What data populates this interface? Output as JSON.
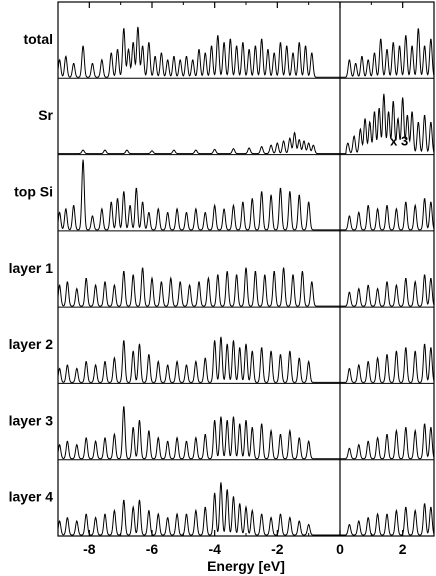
{
  "chart_data": {
    "type": "line",
    "title": "",
    "xlabel": "Energy [eV]",
    "ylabel": "",
    "xlim": [
      -9.0,
      3.0
    ],
    "xticks": [
      -8,
      -6,
      -4,
      -2,
      0,
      2
    ],
    "xtick_labels": [
      "-8",
      "-6",
      "-4",
      "-2",
      "0",
      "2"
    ],
    "fermi_level": 0,
    "band_gap": [
      -0.6,
      0.2
    ],
    "grid": false,
    "legend": "none",
    "line_color": "#000000",
    "series": [
      {
        "name": "total",
        "peaks": [
          [
            -8.95,
            0.25
          ],
          [
            -8.75,
            0.3
          ],
          [
            -8.5,
            0.2
          ],
          [
            -8.2,
            0.45
          ],
          [
            -7.9,
            0.2
          ],
          [
            -7.6,
            0.25
          ],
          [
            -7.3,
            0.35
          ],
          [
            -7.1,
            0.4
          ],
          [
            -6.9,
            0.7
          ],
          [
            -6.75,
            0.4
          ],
          [
            -6.6,
            0.5
          ],
          [
            -6.45,
            0.72
          ],
          [
            -6.3,
            0.45
          ],
          [
            -6.1,
            0.5
          ],
          [
            -5.9,
            0.3
          ],
          [
            -5.7,
            0.35
          ],
          [
            -5.5,
            0.25
          ],
          [
            -5.3,
            0.3
          ],
          [
            -5.1,
            0.25
          ],
          [
            -4.9,
            0.3
          ],
          [
            -4.7,
            0.25
          ],
          [
            -4.5,
            0.4
          ],
          [
            -4.3,
            0.35
          ],
          [
            -4.1,
            0.45
          ],
          [
            -3.9,
            0.6
          ],
          [
            -3.7,
            0.5
          ],
          [
            -3.5,
            0.55
          ],
          [
            -3.3,
            0.45
          ],
          [
            -3.1,
            0.5
          ],
          [
            -2.9,
            0.4
          ],
          [
            -2.7,
            0.45
          ],
          [
            -2.5,
            0.55
          ],
          [
            -2.3,
            0.4
          ],
          [
            -2.1,
            0.35
          ],
          [
            -1.9,
            0.5
          ],
          [
            -1.7,
            0.45
          ],
          [
            -1.5,
            0.35
          ],
          [
            -1.3,
            0.5
          ],
          [
            -1.1,
            0.45
          ],
          [
            -0.9,
            0.35
          ],
          [
            0.3,
            0.25
          ],
          [
            0.5,
            0.2
          ],
          [
            0.7,
            0.3
          ],
          [
            0.9,
            0.25
          ],
          [
            1.1,
            0.35
          ],
          [
            1.3,
            0.55
          ],
          [
            1.5,
            0.4
          ],
          [
            1.7,
            0.5
          ],
          [
            1.9,
            0.45
          ],
          [
            2.1,
            0.6
          ],
          [
            2.3,
            0.45
          ],
          [
            2.5,
            0.7
          ],
          [
            2.7,
            0.45
          ],
          [
            2.9,
            0.55
          ]
        ],
        "annotation": ""
      },
      {
        "name": "Sr",
        "peaks": [
          [
            -8.2,
            0.05
          ],
          [
            -7.5,
            0.05
          ],
          [
            -6.8,
            0.05
          ],
          [
            -6.0,
            0.04
          ],
          [
            -5.3,
            0.05
          ],
          [
            -4.6,
            0.05
          ],
          [
            -4.0,
            0.06
          ],
          [
            -3.4,
            0.07
          ],
          [
            -2.9,
            0.08
          ],
          [
            -2.5,
            0.1
          ],
          [
            -2.2,
            0.12
          ],
          [
            -2.0,
            0.15
          ],
          [
            -1.8,
            0.18
          ],
          [
            -1.6,
            0.22
          ],
          [
            -1.45,
            0.3
          ],
          [
            -1.3,
            0.2
          ],
          [
            -1.15,
            0.18
          ],
          [
            -1.0,
            0.15
          ],
          [
            -0.85,
            0.12
          ],
          [
            0.25,
            0.15
          ],
          [
            0.45,
            0.25
          ],
          [
            0.65,
            0.35
          ],
          [
            0.8,
            0.5
          ],
          [
            0.95,
            0.45
          ],
          [
            1.1,
            0.6
          ],
          [
            1.25,
            0.65
          ],
          [
            1.4,
            0.85
          ],
          [
            1.55,
            0.6
          ],
          [
            1.7,
            0.75
          ],
          [
            1.85,
            0.5
          ],
          [
            2.0,
            0.8
          ],
          [
            2.15,
            0.55
          ],
          [
            2.3,
            0.6
          ],
          [
            2.5,
            0.45
          ],
          [
            2.7,
            0.55
          ],
          [
            2.9,
            0.45
          ]
        ],
        "annotation": "x 3"
      },
      {
        "name": "top Si",
        "peaks": [
          [
            -8.95,
            0.25
          ],
          [
            -8.75,
            0.3
          ],
          [
            -8.5,
            0.35
          ],
          [
            -8.2,
            1.0
          ],
          [
            -7.9,
            0.2
          ],
          [
            -7.6,
            0.3
          ],
          [
            -7.3,
            0.4
          ],
          [
            -7.1,
            0.45
          ],
          [
            -6.9,
            0.55
          ],
          [
            -6.7,
            0.35
          ],
          [
            -6.5,
            0.6
          ],
          [
            -6.3,
            0.4
          ],
          [
            -6.1,
            0.25
          ],
          [
            -5.8,
            0.3
          ],
          [
            -5.5,
            0.25
          ],
          [
            -5.2,
            0.3
          ],
          [
            -4.9,
            0.25
          ],
          [
            -4.6,
            0.3
          ],
          [
            -4.3,
            0.25
          ],
          [
            -4.0,
            0.35
          ],
          [
            -3.7,
            0.3
          ],
          [
            -3.4,
            0.35
          ],
          [
            -3.1,
            0.4
          ],
          [
            -2.8,
            0.45
          ],
          [
            -2.5,
            0.55
          ],
          [
            -2.2,
            0.5
          ],
          [
            -1.9,
            0.6
          ],
          [
            -1.6,
            0.55
          ],
          [
            -1.3,
            0.5
          ],
          [
            -1.0,
            0.4
          ],
          [
            0.3,
            0.2
          ],
          [
            0.6,
            0.25
          ],
          [
            0.9,
            0.35
          ],
          [
            1.2,
            0.3
          ],
          [
            1.5,
            0.35
          ],
          [
            1.8,
            0.3
          ],
          [
            2.1,
            0.4
          ],
          [
            2.4,
            0.35
          ],
          [
            2.7,
            0.45
          ],
          [
            2.9,
            0.4
          ]
        ],
        "annotation": ""
      },
      {
        "name": "layer 1",
        "peaks": [
          [
            -8.95,
            0.3
          ],
          [
            -8.7,
            0.35
          ],
          [
            -8.4,
            0.25
          ],
          [
            -8.1,
            0.4
          ],
          [
            -7.8,
            0.3
          ],
          [
            -7.5,
            0.35
          ],
          [
            -7.2,
            0.3
          ],
          [
            -6.9,
            0.5
          ],
          [
            -6.6,
            0.45
          ],
          [
            -6.3,
            0.55
          ],
          [
            -6.0,
            0.4
          ],
          [
            -5.7,
            0.35
          ],
          [
            -5.4,
            0.4
          ],
          [
            -5.1,
            0.35
          ],
          [
            -4.8,
            0.3
          ],
          [
            -4.5,
            0.35
          ],
          [
            -4.2,
            0.4
          ],
          [
            -3.9,
            0.45
          ],
          [
            -3.6,
            0.5
          ],
          [
            -3.3,
            0.45
          ],
          [
            -3.0,
            0.55
          ],
          [
            -2.7,
            0.5
          ],
          [
            -2.4,
            0.45
          ],
          [
            -2.1,
            0.5
          ],
          [
            -1.8,
            0.55
          ],
          [
            -1.5,
            0.45
          ],
          [
            -1.2,
            0.5
          ],
          [
            -0.9,
            0.35
          ],
          [
            0.3,
            0.2
          ],
          [
            0.6,
            0.25
          ],
          [
            0.9,
            0.3
          ],
          [
            1.2,
            0.25
          ],
          [
            1.5,
            0.35
          ],
          [
            1.8,
            0.3
          ],
          [
            2.1,
            0.4
          ],
          [
            2.4,
            0.35
          ],
          [
            2.7,
            0.45
          ],
          [
            2.9,
            0.4
          ]
        ],
        "annotation": ""
      },
      {
        "name": "layer 2",
        "peaks": [
          [
            -8.95,
            0.2
          ],
          [
            -8.7,
            0.25
          ],
          [
            -8.4,
            0.2
          ],
          [
            -8.1,
            0.3
          ],
          [
            -7.8,
            0.25
          ],
          [
            -7.5,
            0.3
          ],
          [
            -7.2,
            0.35
          ],
          [
            -6.9,
            0.6
          ],
          [
            -6.6,
            0.45
          ],
          [
            -6.4,
            0.55
          ],
          [
            -6.1,
            0.4
          ],
          [
            -5.8,
            0.3
          ],
          [
            -5.5,
            0.25
          ],
          [
            -5.2,
            0.3
          ],
          [
            -4.9,
            0.25
          ],
          [
            -4.6,
            0.3
          ],
          [
            -4.3,
            0.35
          ],
          [
            -4.0,
            0.6
          ],
          [
            -3.8,
            0.65
          ],
          [
            -3.6,
            0.55
          ],
          [
            -3.4,
            0.6
          ],
          [
            -3.2,
            0.5
          ],
          [
            -3.0,
            0.55
          ],
          [
            -2.8,
            0.45
          ],
          [
            -2.5,
            0.5
          ],
          [
            -2.2,
            0.45
          ],
          [
            -1.9,
            0.4
          ],
          [
            -1.6,
            0.45
          ],
          [
            -1.3,
            0.35
          ],
          [
            -1.0,
            0.3
          ],
          [
            0.3,
            0.2
          ],
          [
            0.6,
            0.25
          ],
          [
            0.9,
            0.3
          ],
          [
            1.2,
            0.35
          ],
          [
            1.5,
            0.4
          ],
          [
            1.8,
            0.45
          ],
          [
            2.1,
            0.5
          ],
          [
            2.4,
            0.45
          ],
          [
            2.7,
            0.55
          ],
          [
            2.9,
            0.5
          ]
        ],
        "annotation": ""
      },
      {
        "name": "layer 3",
        "peaks": [
          [
            -8.95,
            0.2
          ],
          [
            -8.7,
            0.25
          ],
          [
            -8.4,
            0.2
          ],
          [
            -8.1,
            0.3
          ],
          [
            -7.8,
            0.25
          ],
          [
            -7.5,
            0.3
          ],
          [
            -7.2,
            0.35
          ],
          [
            -6.9,
            0.75
          ],
          [
            -6.6,
            0.45
          ],
          [
            -6.4,
            0.55
          ],
          [
            -6.1,
            0.4
          ],
          [
            -5.8,
            0.3
          ],
          [
            -5.5,
            0.25
          ],
          [
            -5.2,
            0.3
          ],
          [
            -4.9,
            0.25
          ],
          [
            -4.6,
            0.3
          ],
          [
            -4.3,
            0.35
          ],
          [
            -4.0,
            0.55
          ],
          [
            -3.8,
            0.6
          ],
          [
            -3.6,
            0.55
          ],
          [
            -3.4,
            0.6
          ],
          [
            -3.2,
            0.5
          ],
          [
            -3.0,
            0.55
          ],
          [
            -2.8,
            0.45
          ],
          [
            -2.5,
            0.5
          ],
          [
            -2.2,
            0.4
          ],
          [
            -1.9,
            0.35
          ],
          [
            -1.6,
            0.4
          ],
          [
            -1.3,
            0.3
          ],
          [
            -1.0,
            0.25
          ],
          [
            0.3,
            0.15
          ],
          [
            0.6,
            0.2
          ],
          [
            0.9,
            0.25
          ],
          [
            1.2,
            0.3
          ],
          [
            1.5,
            0.35
          ],
          [
            1.8,
            0.4
          ],
          [
            2.1,
            0.45
          ],
          [
            2.4,
            0.4
          ],
          [
            2.7,
            0.5
          ],
          [
            2.9,
            0.45
          ]
        ],
        "annotation": ""
      },
      {
        "name": "layer 4",
        "peaks": [
          [
            -8.95,
            0.2
          ],
          [
            -8.7,
            0.25
          ],
          [
            -8.4,
            0.2
          ],
          [
            -8.1,
            0.3
          ],
          [
            -7.8,
            0.25
          ],
          [
            -7.5,
            0.3
          ],
          [
            -7.2,
            0.35
          ],
          [
            -6.9,
            0.5
          ],
          [
            -6.6,
            0.4
          ],
          [
            -6.4,
            0.5
          ],
          [
            -6.1,
            0.35
          ],
          [
            -5.8,
            0.3
          ],
          [
            -5.5,
            0.25
          ],
          [
            -5.2,
            0.3
          ],
          [
            -4.9,
            0.3
          ],
          [
            -4.6,
            0.35
          ],
          [
            -4.3,
            0.4
          ],
          [
            -4.0,
            0.6
          ],
          [
            -3.8,
            0.75
          ],
          [
            -3.6,
            0.65
          ],
          [
            -3.4,
            0.55
          ],
          [
            -3.2,
            0.45
          ],
          [
            -3.0,
            0.4
          ],
          [
            -2.8,
            0.35
          ],
          [
            -2.5,
            0.3
          ],
          [
            -2.2,
            0.25
          ],
          [
            -1.9,
            0.3
          ],
          [
            -1.6,
            0.25
          ],
          [
            -1.3,
            0.2
          ],
          [
            -1.0,
            0.15
          ],
          [
            0.3,
            0.15
          ],
          [
            0.6,
            0.2
          ],
          [
            0.9,
            0.25
          ],
          [
            1.2,
            0.3
          ],
          [
            1.5,
            0.3
          ],
          [
            1.8,
            0.35
          ],
          [
            2.1,
            0.4
          ],
          [
            2.4,
            0.35
          ],
          [
            2.7,
            0.45
          ],
          [
            2.9,
            0.4
          ]
        ],
        "annotation": ""
      }
    ]
  }
}
